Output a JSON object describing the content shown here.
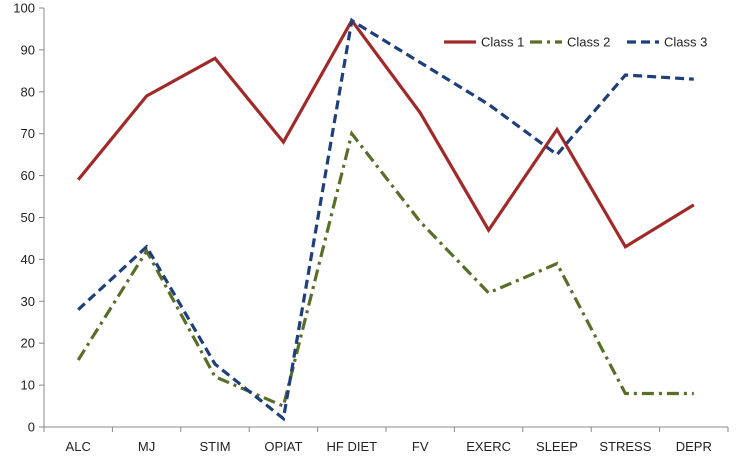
{
  "chart_data": {
    "type": "line",
    "title": "",
    "xlabel": "",
    "ylabel": "",
    "categories": [
      "ALC",
      "MJ",
      "STIM",
      "OPIAT",
      "HF DIET",
      "FV",
      "EXERC",
      "SLEEP",
      "STRESS",
      "DEPR"
    ],
    "ylim": [
      0,
      100
    ],
    "yticks": [
      0,
      10,
      20,
      30,
      40,
      50,
      60,
      70,
      80,
      90,
      100
    ],
    "grid": false,
    "legend_position": "top-right",
    "series": [
      {
        "name": "Class 1",
        "color": "#a02a2a",
        "dash": "solid",
        "values": [
          59,
          79,
          88,
          68,
          97,
          75,
          47,
          71,
          43,
          53
        ]
      },
      {
        "name": "Class 2",
        "color": "#5a6e2a",
        "dash": "dash-dot",
        "values": [
          16,
          42,
          12,
          5,
          70,
          49,
          32,
          39,
          8,
          8
        ]
      },
      {
        "name": "Class 3",
        "color": "#1f3f7a",
        "dash": "dashed",
        "values": [
          28,
          43,
          15,
          2,
          97,
          87,
          77,
          65,
          84,
          83
        ]
      }
    ]
  }
}
